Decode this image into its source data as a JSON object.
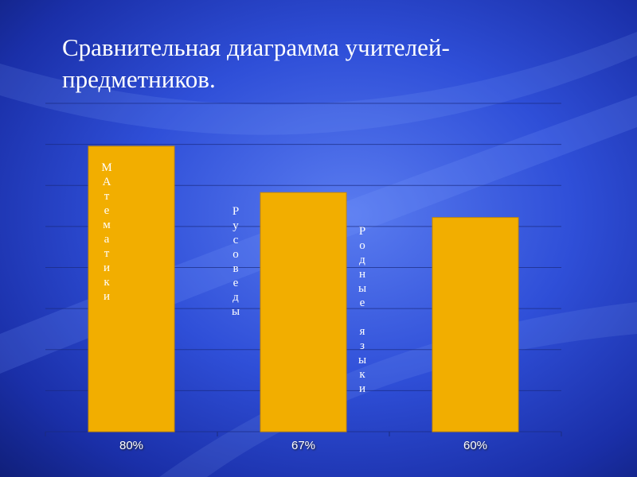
{
  "chart_data": {
    "type": "bar",
    "title": "Сравнительная диаграмма учителей-предметников.",
    "categories": [
      "80%",
      "67%",
      "60%"
    ],
    "values": [
      80,
      67,
      60
    ],
    "bar_labels": [
      "МАтематики",
      "Русоведы",
      "Родные языки"
    ],
    "color": "#f2ae00",
    "ylim": [
      0,
      92
    ],
    "yticks": [
      0,
      11.5,
      23,
      34.5,
      46,
      57.5,
      69,
      80.5,
      92
    ],
    "grid": true
  }
}
